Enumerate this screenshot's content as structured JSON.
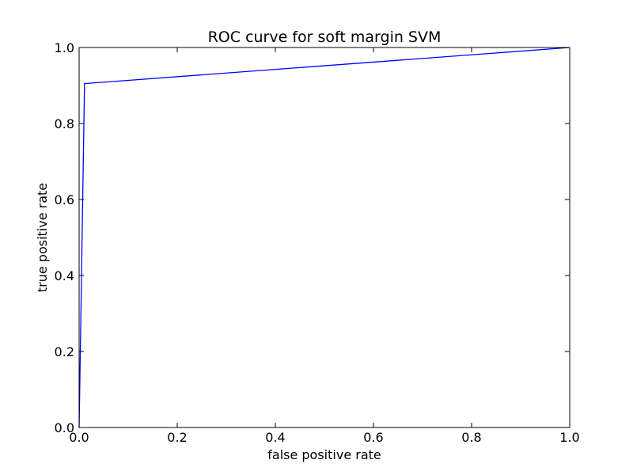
{
  "chart_data": {
    "type": "line",
    "title": "ROC curve for soft margin SVM",
    "xlabel": "false positive rate",
    "ylabel": "true positive rate",
    "xlim": [
      0.0,
      1.0
    ],
    "ylim": [
      0.0,
      1.0
    ],
    "xticks": [
      "0.0",
      "0.2",
      "0.4",
      "0.6",
      "0.8",
      "1.0"
    ],
    "yticks": [
      "0.0",
      "0.2",
      "0.4",
      "0.6",
      "0.8",
      "1.0"
    ],
    "grid": false,
    "series": [
      {
        "color": "#0000ff",
        "x": [
          0.0,
          0.011,
          1.0
        ],
        "y": [
          0.0,
          0.905,
          1.0
        ]
      }
    ]
  }
}
